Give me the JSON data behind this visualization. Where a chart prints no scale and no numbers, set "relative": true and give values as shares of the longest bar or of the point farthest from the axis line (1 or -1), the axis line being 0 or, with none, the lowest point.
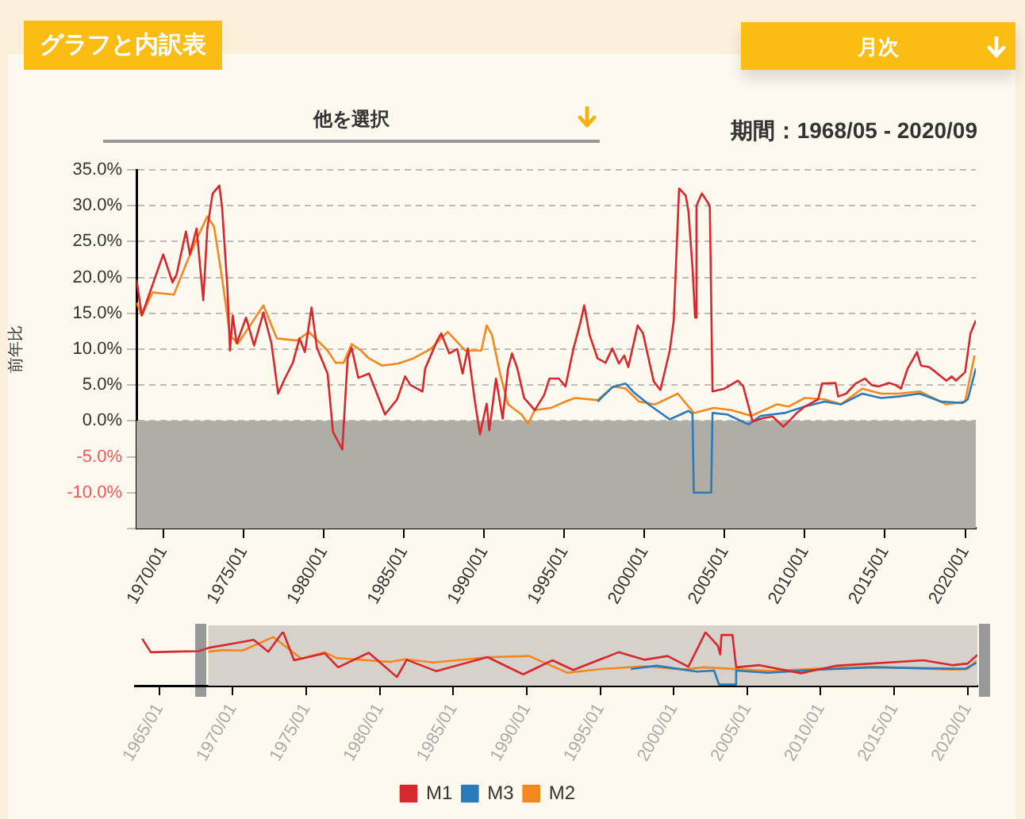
{
  "chart_data": [
    {
      "type": "line",
      "title": "グラフと内訳表",
      "subtitle": "期間：1968/05 - 2020/09",
      "annotations": [
        "月次",
        "他を選択"
      ],
      "ylabel": "前年比",
      "xlim": [
        "1968-05",
        "2020-09"
      ],
      "xticks": [
        {
          "value": "1970-01",
          "label": "1970/01"
        },
        {
          "value": "1975-01",
          "label": "1975/01"
        },
        {
          "value": "1980-01",
          "label": "1980/01"
        },
        {
          "value": "1985-01",
          "label": "1985/01"
        },
        {
          "value": "1990-01",
          "label": "1990/01"
        },
        {
          "value": "1995-01",
          "label": "1995/01"
        },
        {
          "value": "2000-01",
          "label": "2000/01"
        },
        {
          "value": "2005-01",
          "label": "2005/01"
        },
        {
          "value": "2010-01",
          "label": "2010/01"
        },
        {
          "value": "2015-01",
          "label": "2015/01"
        },
        {
          "value": "2020-01",
          "label": "2020/01"
        }
      ],
      "ylim": [
        -15,
        35
      ],
      "yticks": [
        {
          "value": -15,
          "label": null
        },
        {
          "value": -10,
          "label": "-10.0%"
        },
        {
          "value": -5,
          "label": "-5.0%"
        },
        {
          "value": 0,
          "label": "0.0%"
        },
        {
          "value": 5,
          "label": "5.0%"
        },
        {
          "value": 10,
          "label": "10.0%"
        },
        {
          "value": 15,
          "label": "15.0%"
        },
        {
          "value": 20,
          "label": "20.0%"
        },
        {
          "value": 25,
          "label": "25.0%"
        },
        {
          "value": 30,
          "label": "30.0%"
        },
        {
          "value": 35,
          "label": "35.0%"
        }
      ],
      "grid": "y",
      "legend": "bottom",
      "marker": "none",
      "line_style": "solid",
      "bands": [
        {
          "axis": "y",
          "from": -15,
          "to": 0,
          "color": "#b0ada6"
        }
      ],
      "series": [
        {
          "name": "M1",
          "color": "#d7282e",
          "x": [
            "1968-05",
            "1968-09",
            "1970-01",
            "1970-08",
            "1970-11",
            "1971-06",
            "1971-09",
            "1972-02",
            "1972-07",
            "1972-10",
            "1973-02",
            "1973-07",
            "1973-09",
            "1974-01",
            "1974-03",
            "1974-05",
            "1974-08",
            "1975-03",
            "1975-09",
            "1976-04",
            "1976-10",
            "1977-03",
            "1977-08",
            "1978-02",
            "1978-07",
            "1978-11",
            "1979-04",
            "1979-08",
            "1980-04",
            "1980-08",
            "1981-03",
            "1981-07",
            "1981-10",
            "1982-03",
            "1982-11",
            "1983-11",
            "1984-08",
            "1985-02",
            "1985-06",
            "1986-03",
            "1986-05",
            "1987-02",
            "1987-05",
            "1987-11",
            "1988-05",
            "1988-09",
            "1989-01",
            "1989-06",
            "1989-10",
            "1990-03",
            "1990-05",
            "1990-10",
            "1991-03",
            "1991-07",
            "1991-10",
            "1992-02",
            "1992-07",
            "1993-03",
            "1993-10",
            "1994-02",
            "1994-09",
            "1995-02",
            "1995-08",
            "1996-01",
            "1996-04",
            "1996-08",
            "1997-02",
            "1997-08",
            "1998-01",
            "1998-06",
            "1998-10",
            "1999-01",
            "1999-08",
            "1999-12",
            "2000-08",
            "2001-01",
            "2001-08",
            "2001-11",
            "2002-03",
            "2002-08",
            "2002-10",
            "2003-01",
            "2003-03",
            "2003-04",
            "2003-08",
            "2004-01",
            "2004-02",
            "2004-04",
            "2005-01",
            "2005-11",
            "2006-03",
            "2006-10",
            "2007-06",
            "2008-01",
            "2008-09",
            "2009-03",
            "2009-07",
            "2010-01",
            "2010-11",
            "2011-02",
            "2011-12",
            "2012-02",
            "2012-08",
            "2013-03",
            "2013-10",
            "2014-03",
            "2014-08",
            "2015-04",
            "2015-09",
            "2016-01",
            "2016-06",
            "2017-01",
            "2017-04",
            "2017-10",
            "2018-03",
            "2018-11",
            "2019-03",
            "2019-06",
            "2020-01",
            "2020-05",
            "2020-09"
          ],
          "values": [
            19.7,
            14.7,
            23.2,
            19.3,
            20.4,
            26.4,
            23.2,
            26.8,
            16.8,
            26.8,
            31.7,
            32.8,
            29.9,
            18.7,
            9.8,
            14.7,
            10.8,
            14.4,
            10.5,
            15.1,
            10.8,
            3.8,
            5.9,
            8.1,
            11.5,
            9.6,
            15.8,
            10.2,
            6.6,
            -1.5,
            -4.0,
            8.7,
            10.2,
            6.0,
            6.6,
            0.9,
            3.0,
            6.2,
            5.0,
            4.1,
            7.3,
            11.2,
            12.2,
            9.4,
            10.0,
            6.6,
            10.1,
            3.0,
            -1.9,
            2.4,
            -1.3,
            5.9,
            0.3,
            7.3,
            9.4,
            7.3,
            3.2,
            1.5,
            3.6,
            5.9,
            5.9,
            4.8,
            10.1,
            13.6,
            16.1,
            12.0,
            8.7,
            8.1,
            10.1,
            8.0,
            9.1,
            7.5,
            13.3,
            12.2,
            5.5,
            4.3,
            9.8,
            14.0,
            32.4,
            31.4,
            29.2,
            21.4,
            14.4,
            30.0,
            31.7,
            30.3,
            29.8,
            4.1,
            4.5,
            5.6,
            4.8,
            -0.1,
            0.4,
            0.6,
            -0.8,
            0.3,
            1.1,
            2.0,
            3.0,
            5.2,
            5.3,
            3.4,
            3.8,
            5.2,
            5.9,
            5.0,
            4.8,
            5.3,
            5.0,
            4.5,
            7.3,
            9.6,
            7.7,
            7.5,
            6.8,
            5.6,
            6.2,
            5.6,
            6.8,
            12.2,
            14.0
          ]
        },
        {
          "name": "M3",
          "color": "#2b7bba",
          "x": [
            "1997-02",
            "1998-01",
            "1998-11",
            "1999-05",
            "2000-05",
            "2001-08",
            "2002-10",
            "2003-01",
            "2003-02",
            "2004-03",
            "2004-04",
            "2005-03",
            "2006-07",
            "2007-04",
            "2008-10",
            "2010-01",
            "2011-04",
            "2012-04",
            "2013-08",
            "2014-10",
            "2015-11",
            "2017-03",
            "2018-07",
            "2019-11",
            "2020-03",
            "2020-09"
          ],
          "values": [
            2.7,
            4.7,
            5.2,
            4.0,
            2.2,
            0.2,
            1.4,
            1.0,
            -10.0,
            -10.0,
            1.1,
            0.9,
            -0.5,
            0.7,
            1.1,
            2.0,
            2.7,
            2.3,
            3.8,
            3.2,
            3.4,
            3.8,
            2.7,
            2.5,
            3.0,
            7.3
          ]
        },
        {
          "name": "M2",
          "color": "#f5871f",
          "x": [
            "1968-05",
            "1968-09",
            "1969-05",
            "1970-09",
            "1971-06",
            "1972-03",
            "1972-10",
            "1973-03",
            "1973-09",
            "1974-03",
            "1974-09",
            "1975-06",
            "1976-04",
            "1977-02",
            "1978-05",
            "1979-02",
            "1980-04",
            "1980-10",
            "1981-04",
            "1981-10",
            "1982-05",
            "1982-11",
            "1983-09",
            "1984-09",
            "1985-08",
            "1986-03",
            "1986-09",
            "1987-07",
            "1987-10",
            "1988-11",
            "1989-11",
            "1990-03",
            "1990-07",
            "1991-01",
            "1991-07",
            "1992-05",
            "1992-10",
            "1993-03",
            "1994-03",
            "1995-02",
            "1995-09",
            "1997-02",
            "1998-02",
            "1998-11",
            "1999-09",
            "2000-09",
            "2002-02",
            "2003-02",
            "2004-05",
            "2005-06",
            "2006-09",
            "2008-04",
            "2009-01",
            "2010-01",
            "2011-04",
            "2012-04",
            "2013-08",
            "2014-10",
            "2015-11",
            "2017-03",
            "2018-11",
            "2020-01",
            "2020-08"
          ],
          "values": [
            16.5,
            14.7,
            17.9,
            17.6,
            21.8,
            25.7,
            28.5,
            27.1,
            20.0,
            11.9,
            10.8,
            13.3,
            16.1,
            11.5,
            11.2,
            12.4,
            9.8,
            8.1,
            8.1,
            10.7,
            9.8,
            8.7,
            7.7,
            8.0,
            8.7,
            9.4,
            10.0,
            11.9,
            12.4,
            9.8,
            9.8,
            13.3,
            12.0,
            6.6,
            2.3,
            0.9,
            -0.4,
            1.5,
            1.8,
            2.7,
            3.2,
            2.9,
            4.8,
            4.5,
            2.7,
            2.3,
            3.8,
            1.1,
            1.8,
            1.5,
            0.7,
            2.3,
            2.0,
            3.2,
            3.0,
            2.3,
            4.5,
            3.8,
            3.8,
            4.1,
            2.3,
            2.7,
            9.1
          ]
        }
      ]
    },
    {
      "type": "line",
      "relative": true,
      "tick_labels": "x",
      "xlim": [
        "1963-05",
        "2020-09"
      ],
      "xticks": [
        {
          "value": "1965-01",
          "label": "1965/01"
        },
        {
          "value": "1970-01",
          "label": "1970/01"
        },
        {
          "value": "1975-01",
          "label": "1975/01"
        },
        {
          "value": "1980-01",
          "label": "1980/01"
        },
        {
          "value": "1985-01",
          "label": "1985/01"
        },
        {
          "value": "1990-01",
          "label": "1990/01"
        },
        {
          "value": "1995-01",
          "label": "1995/01"
        },
        {
          "value": "2000-01",
          "label": "2000/01"
        },
        {
          "value": "2005-01",
          "label": "2005/01"
        },
        {
          "value": "2010-01",
          "label": "2010/01"
        },
        {
          "value": "2015-01",
          "label": "2015/01"
        },
        {
          "value": "2020-01",
          "label": "2020/01"
        }
      ],
      "marker": "none",
      "bands": [
        {
          "axis": "x",
          "from": "1968-05",
          "to": "2020-09",
          "color": "#d6d2cb"
        }
      ],
      "series": [
        {
          "color": "#d7282e",
          "x": [
            "1963-11",
            "1964-06",
            "1966-01",
            "1967-09",
            "1968-05",
            "1970-01",
            "1971-06",
            "1972-06",
            "1973-06",
            "1974-03",
            "1976-04",
            "1977-03",
            "1979-04",
            "1981-03",
            "1981-11",
            "1983-11",
            "1987-05",
            "1989-10",
            "1991-10",
            "1993-03",
            "1996-04",
            "1998-01",
            "1999-08",
            "2001-01",
            "2002-03",
            "2003-01",
            "2003-03",
            "2003-04",
            "2004-01",
            "2004-04",
            "2005-11",
            "2008-09",
            "2011-02",
            "2017-01",
            "2019-01",
            "2020-01",
            "2020-09"
          ],
          "values": [
            0.87,
            0.62,
            0.63,
            0.64,
            0.7,
            0.78,
            0.85,
            0.63,
            1.0,
            0.47,
            0.6,
            0.34,
            0.61,
            0.16,
            0.48,
            0.27,
            0.53,
            0.21,
            0.47,
            0.29,
            0.62,
            0.48,
            0.55,
            0.35,
            0.99,
            0.74,
            0.58,
            0.94,
            0.94,
            0.34,
            0.38,
            0.23,
            0.37,
            0.47,
            0.38,
            0.41,
            0.57
          ]
        },
        {
          "color": "#2b7bba",
          "x": [
            "1997-02",
            "1998-11",
            "2001-08",
            "2002-10",
            "2003-02",
            "2004-03",
            "2004-04",
            "2006-06",
            "2010-01",
            "2013-08",
            "2019-11",
            "2020-08"
          ],
          "values": [
            0.31,
            0.37,
            0.26,
            0.28,
            0.02,
            0.02,
            0.28,
            0.24,
            0.3,
            0.34,
            0.31,
            0.42
          ]
        },
        {
          "color": "#f5871f",
          "x": [
            "1968-05",
            "1969-05",
            "1970-09",
            "1972-10",
            "1973-09",
            "1974-09",
            "1976-04",
            "1977-02",
            "1980-10",
            "1981-10",
            "1983-09",
            "1987-07",
            "1990-03",
            "1992-10",
            "1995-02",
            "1998-02",
            "2000-09",
            "2002-02",
            "2006-09",
            "2010-01",
            "2013-08",
            "2018-11",
            "2020-01",
            "2020-08"
          ],
          "values": [
            0.63,
            0.66,
            0.65,
            0.9,
            0.71,
            0.5,
            0.62,
            0.51,
            0.44,
            0.49,
            0.43,
            0.53,
            0.55,
            0.24,
            0.31,
            0.36,
            0.3,
            0.34,
            0.27,
            0.32,
            0.35,
            0.3,
            0.31,
            0.46
          ]
        }
      ]
    }
  ]
}
